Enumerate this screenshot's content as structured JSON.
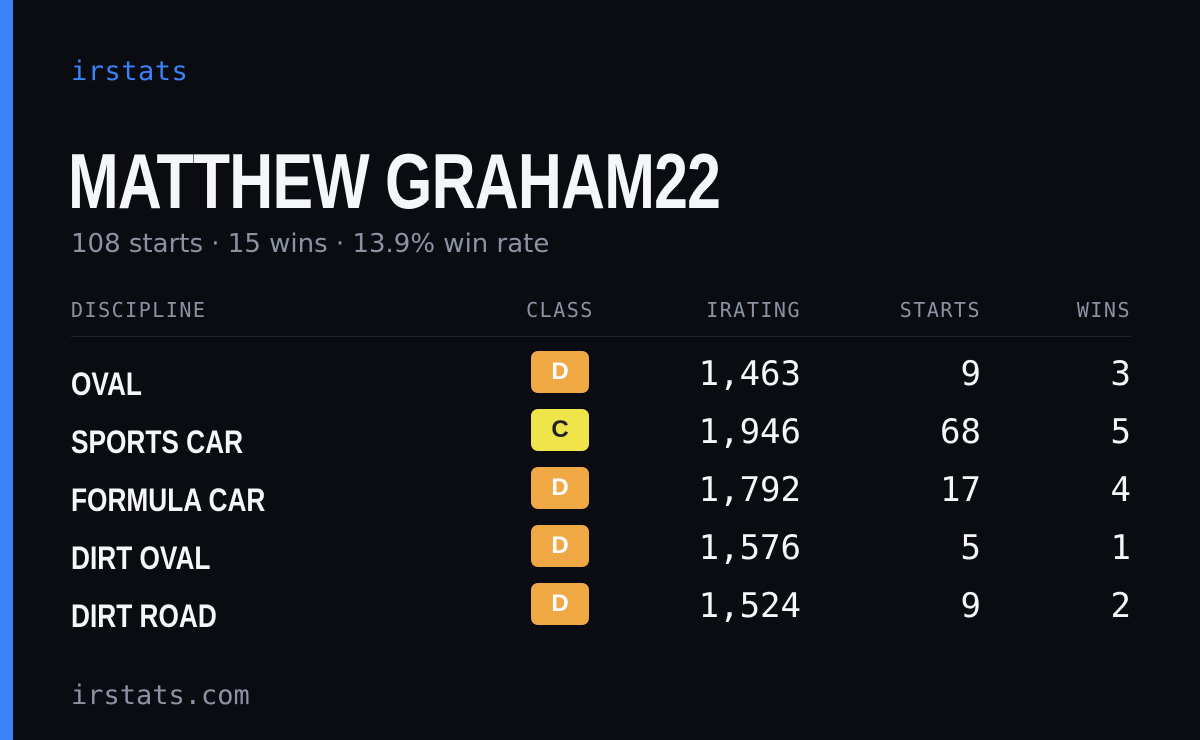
{
  "brand": "irstats",
  "profile": {
    "name": "MATTHEW GRAHAM22",
    "summary": "108 starts · 15 wins · 13.9% win rate"
  },
  "table": {
    "headers": {
      "discipline": "DISCIPLINE",
      "class": "CLASS",
      "irating": "IRATING",
      "starts": "STARTS",
      "wins": "WINS"
    },
    "rows": [
      {
        "discipline": "OVAL",
        "class": "D",
        "irating": "1,463",
        "starts": "9",
        "wins": "3"
      },
      {
        "discipline": "SPORTS CAR",
        "class": "C",
        "irating": "1,946",
        "starts": "68",
        "wins": "5"
      },
      {
        "discipline": "FORMULA CAR",
        "class": "D",
        "irating": "1,792",
        "starts": "17",
        "wins": "4"
      },
      {
        "discipline": "DIRT OVAL",
        "class": "D",
        "irating": "1,576",
        "starts": "5",
        "wins": "1"
      },
      {
        "discipline": "DIRT ROAD",
        "class": "D",
        "irating": "1,524",
        "starts": "9",
        "wins": "2"
      }
    ]
  },
  "footer": "irstats.com",
  "colors": {
    "accent": "#3b82f6",
    "background": "#0a0c12",
    "class_d": "#f0a845",
    "class_c": "#efe44a"
  }
}
